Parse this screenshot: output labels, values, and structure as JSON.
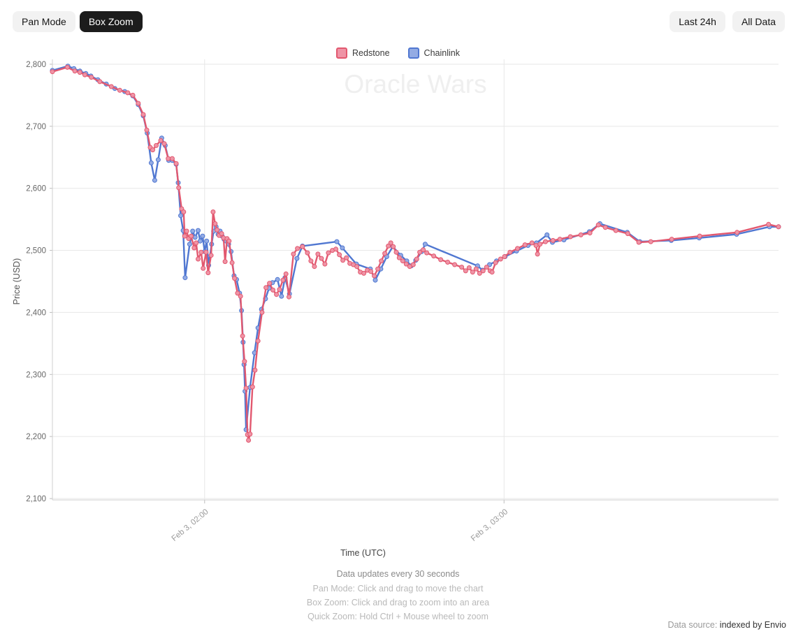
{
  "toolbar": {
    "pan_mode_label": "Pan Mode",
    "box_zoom_label": "Box Zoom",
    "last_24h_label": "Last 24h",
    "all_data_label": "All Data",
    "active_mode": "Box Zoom"
  },
  "footer": {
    "update_note": "Data updates every 30 seconds",
    "hints": [
      "Pan Mode: Click and drag to move the chart",
      "Box Zoom: Click and drag to zoom into an area",
      "Quick Zoom: Hold Ctrl + Mouse wheel to zoom"
    ]
  },
  "data_source": {
    "prefix": "Data source: ",
    "link_text": "indexed by Envio"
  },
  "chart_data": {
    "type": "line",
    "title": "Oracle Wars",
    "watermark": "Oracle Wars",
    "xlabel": "Time (UTC)",
    "ylabel": "Price (USD)",
    "ylim": [
      2100,
      2800
    ],
    "y_tick_step": 100,
    "x_unit": "minutes after Feb 3, 00:00 UTC",
    "xlim": [
      89.5,
      235
    ],
    "x_ticks": [
      {
        "t": 120,
        "label": "Feb 3, 02:00"
      },
      {
        "t": 180,
        "label": "Feb 3, 03:00"
      }
    ],
    "grid": true,
    "legend_position": "top-center",
    "series": [
      {
        "name": "Redstone",
        "color": "#e2586f",
        "marker_fill": "#ef94a6",
        "points": [
          [
            89.5,
            2788
          ],
          [
            92.5,
            2795
          ],
          [
            94,
            2789
          ],
          [
            95,
            2787
          ],
          [
            96,
            2783
          ],
          [
            97.3,
            2779
          ],
          [
            99,
            2772
          ],
          [
            101.3,
            2764
          ],
          [
            103,
            2758
          ],
          [
            104.6,
            2754
          ],
          [
            105.6,
            2750
          ],
          [
            106.7,
            2737
          ],
          [
            107.7,
            2719
          ],
          [
            108.4,
            2694
          ],
          [
            109.1,
            2666
          ],
          [
            109.6,
            2662
          ],
          [
            110.3,
            2669
          ],
          [
            111.2,
            2677
          ],
          [
            111.9,
            2672
          ],
          [
            112.7,
            2648
          ],
          [
            113.5,
            2648
          ],
          [
            114.3,
            2640
          ],
          [
            114.8,
            2601
          ],
          [
            115.4,
            2567
          ],
          [
            115.8,
            2562
          ],
          [
            116,
            2523
          ],
          [
            116.4,
            2531
          ],
          [
            116.8,
            2519
          ],
          [
            117.3,
            2523
          ],
          [
            117.9,
            2504
          ],
          [
            118.3,
            2512
          ],
          [
            118.7,
            2486
          ],
          [
            119.3,
            2497
          ],
          [
            119.7,
            2471
          ],
          [
            120.3,
            2497
          ],
          [
            120.7,
            2464
          ],
          [
            121.3,
            2492
          ],
          [
            121.7,
            2562
          ],
          [
            122.1,
            2543
          ],
          [
            122.5,
            2533
          ],
          [
            122.9,
            2524
          ],
          [
            123.4,
            2527
          ],
          [
            123.8,
            2520
          ],
          [
            124.1,
            2482
          ],
          [
            124.5,
            2519
          ],
          [
            124.9,
            2515
          ],
          [
            125.5,
            2480
          ],
          [
            126,
            2455
          ],
          [
            126.6,
            2431
          ],
          [
            127.2,
            2426
          ],
          [
            127.6,
            2362
          ],
          [
            128,
            2321
          ],
          [
            128.3,
            2278
          ],
          [
            128.6,
            2203
          ],
          [
            128.8,
            2194
          ],
          [
            129.1,
            2204
          ],
          [
            129.6,
            2280
          ],
          [
            130.1,
            2307
          ],
          [
            130.7,
            2354
          ],
          [
            131.5,
            2400
          ],
          [
            132.3,
            2440
          ],
          [
            133,
            2447
          ],
          [
            133.7,
            2436
          ],
          [
            134.4,
            2429
          ],
          [
            135,
            2437
          ],
          [
            135.7,
            2452
          ],
          [
            136.3,
            2462
          ],
          [
            136.9,
            2425
          ],
          [
            137.8,
            2494
          ],
          [
            138.6,
            2503
          ],
          [
            139.6,
            2506
          ],
          [
            140.6,
            2496
          ],
          [
            141.3,
            2483
          ],
          [
            142,
            2474
          ],
          [
            142.7,
            2494
          ],
          [
            143.4,
            2487
          ],
          [
            144.1,
            2478
          ],
          [
            144.8,
            2496
          ],
          [
            145.6,
            2500
          ],
          [
            146.3,
            2502
          ],
          [
            147,
            2493
          ],
          [
            147.7,
            2484
          ],
          [
            148.4,
            2488
          ],
          [
            149.1,
            2479
          ],
          [
            149.8,
            2477
          ],
          [
            150.5,
            2474
          ],
          [
            151.2,
            2465
          ],
          [
            151.9,
            2463
          ],
          [
            152.6,
            2468
          ],
          [
            153.3,
            2466
          ],
          [
            154,
            2459
          ],
          [
            154.7,
            2470
          ],
          [
            155.4,
            2483
          ],
          [
            156.1,
            2495
          ],
          [
            156.8,
            2507
          ],
          [
            157.3,
            2512
          ],
          [
            157.8,
            2506
          ],
          [
            158.4,
            2497
          ],
          [
            159,
            2488
          ],
          [
            159.7,
            2483
          ],
          [
            160.4,
            2478
          ],
          [
            161.1,
            2474
          ],
          [
            161.8,
            2477
          ],
          [
            162.5,
            2486
          ],
          [
            163.1,
            2497
          ],
          [
            163.8,
            2501
          ],
          [
            164.5,
            2496
          ],
          [
            165.9,
            2491
          ],
          [
            167.3,
            2485
          ],
          [
            168.7,
            2481
          ],
          [
            170.1,
            2477
          ],
          [
            171.5,
            2473
          ],
          [
            172.3,
            2467
          ],
          [
            173,
            2472
          ],
          [
            173.7,
            2465
          ],
          [
            174.4,
            2470
          ],
          [
            175.1,
            2463
          ],
          [
            175.8,
            2467
          ],
          [
            176.5,
            2473
          ],
          [
            177.2,
            2467
          ],
          [
            177.6,
            2465
          ],
          [
            178.3,
            2480
          ],
          [
            179.3,
            2486
          ],
          [
            180.1,
            2490
          ],
          [
            181.2,
            2497
          ],
          [
            182.7,
            2503
          ],
          [
            184.2,
            2509
          ],
          [
            185.6,
            2512
          ],
          [
            186.4,
            2508
          ],
          [
            186.7,
            2494
          ],
          [
            187.2,
            2510
          ],
          [
            188.3,
            2514
          ],
          [
            189.8,
            2516
          ],
          [
            191.2,
            2518
          ],
          [
            193.3,
            2522
          ],
          [
            195.4,
            2525
          ],
          [
            197.2,
            2528
          ],
          [
            198.9,
            2541
          ],
          [
            200.3,
            2537
          ],
          [
            202.4,
            2532
          ],
          [
            204.8,
            2527
          ],
          [
            207,
            2513
          ],
          [
            209.4,
            2514
          ],
          [
            213.6,
            2518
          ],
          [
            219.2,
            2523
          ],
          [
            226.7,
            2529
          ],
          [
            233,
            2542
          ],
          [
            235,
            2538
          ]
        ]
      },
      {
        "name": "Chainlink",
        "color": "#5077d1",
        "marker_fill": "#93abe4",
        "points": [
          [
            89.5,
            2790
          ],
          [
            92.6,
            2797
          ],
          [
            93.8,
            2793
          ],
          [
            95,
            2789
          ],
          [
            96.2,
            2785
          ],
          [
            97.2,
            2781
          ],
          [
            98.6,
            2775
          ],
          [
            100.3,
            2768
          ],
          [
            102,
            2761
          ],
          [
            104,
            2756
          ],
          [
            105.6,
            2749
          ],
          [
            106.7,
            2735
          ],
          [
            107.7,
            2717
          ],
          [
            108.5,
            2689
          ],
          [
            109.3,
            2641
          ],
          [
            110,
            2613
          ],
          [
            110.7,
            2646
          ],
          [
            111.4,
            2681
          ],
          [
            112.1,
            2669
          ],
          [
            112.8,
            2645
          ],
          [
            113.5,
            2645
          ],
          [
            114.3,
            2639
          ],
          [
            114.7,
            2609
          ],
          [
            115.2,
            2556
          ],
          [
            115.7,
            2532
          ],
          [
            116.1,
            2456
          ],
          [
            117,
            2510
          ],
          [
            117.6,
            2531
          ],
          [
            118.1,
            2521
          ],
          [
            118.7,
            2532
          ],
          [
            119.1,
            2515
          ],
          [
            119.6,
            2523
          ],
          [
            120,
            2498
          ],
          [
            120.4,
            2515
          ],
          [
            120.8,
            2476
          ],
          [
            121.4,
            2510
          ],
          [
            121.8,
            2531
          ],
          [
            122.3,
            2538
          ],
          [
            122.7,
            2526
          ],
          [
            123.1,
            2531
          ],
          [
            123.5,
            2523
          ],
          [
            123.9,
            2518
          ],
          [
            124.3,
            2515
          ],
          [
            124.8,
            2510
          ],
          [
            125.3,
            2498
          ],
          [
            125.9,
            2459
          ],
          [
            126.4,
            2453
          ],
          [
            127,
            2431
          ],
          [
            127.4,
            2403
          ],
          [
            127.7,
            2352
          ],
          [
            127.9,
            2316
          ],
          [
            128.1,
            2273
          ],
          [
            128.3,
            2211
          ],
          [
            129.1,
            2279
          ],
          [
            130,
            2335
          ],
          [
            130.7,
            2375
          ],
          [
            131.4,
            2405
          ],
          [
            132.2,
            2422
          ],
          [
            132.9,
            2439
          ],
          [
            133.6,
            2448
          ],
          [
            134.6,
            2453
          ],
          [
            135.4,
            2426
          ],
          [
            136.1,
            2456
          ],
          [
            137,
            2430
          ],
          [
            138.5,
            2487
          ],
          [
            139.6,
            2507
          ],
          [
            146.5,
            2514
          ],
          [
            147.6,
            2504
          ],
          [
            150.4,
            2478
          ],
          [
            153.2,
            2470
          ],
          [
            154.2,
            2452
          ],
          [
            155.3,
            2470
          ],
          [
            156.5,
            2490
          ],
          [
            157.7,
            2506
          ],
          [
            159.3,
            2492
          ],
          [
            160.5,
            2483
          ],
          [
            161.4,
            2475
          ],
          [
            162.3,
            2484
          ],
          [
            163.5,
            2498
          ],
          [
            164.2,
            2510
          ],
          [
            174.7,
            2475
          ],
          [
            175.7,
            2468
          ],
          [
            177.1,
            2477
          ],
          [
            178.5,
            2483
          ],
          [
            180.2,
            2490
          ],
          [
            182.5,
            2499
          ],
          [
            184.8,
            2508
          ],
          [
            186.5,
            2512
          ],
          [
            188.6,
            2525
          ],
          [
            189.7,
            2513
          ],
          [
            192,
            2517
          ],
          [
            197.1,
            2530
          ],
          [
            199.2,
            2543
          ],
          [
            204.7,
            2529
          ],
          [
            207.2,
            2514
          ],
          [
            213.5,
            2516
          ],
          [
            219.1,
            2520
          ],
          [
            226.6,
            2526
          ],
          [
            233.2,
            2538
          ],
          [
            235,
            2538
          ]
        ]
      }
    ]
  }
}
